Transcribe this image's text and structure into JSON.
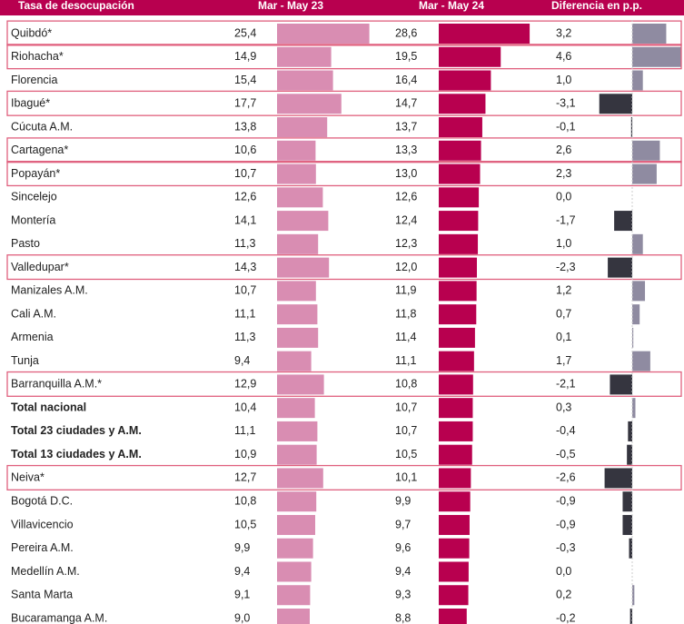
{
  "chart_data": {
    "type": "bar",
    "row_header": "Tasa de desocupación",
    "categories": [
      "Quibdó*",
      "Riohacha*",
      "Florencia",
      "Ibagué*",
      "Cúcuta A.M.",
      "Cartagena*",
      "Popayán*",
      "Sincelejo",
      "Montería",
      "Pasto",
      "Valledupar*",
      "Manizales A.M.",
      "Cali A.M.",
      "Armenia",
      "Tunja",
      "Barranquilla A.M.*",
      "Total nacional",
      "Total 23 ciudades y A.M.",
      "Total 13 ciudades y A.M.",
      "Neiva*",
      "Bogotá D.C.",
      "Villavicencio",
      "Pereira A.M.",
      "Medellín A.M.",
      "Santa Marta",
      "Bucaramanga A.M."
    ],
    "series": [
      {
        "name": "Mar - May 23",
        "color": "#d98db2",
        "values": [
          25.4,
          14.9,
          15.4,
          17.7,
          13.8,
          10.6,
          10.7,
          12.6,
          14.1,
          11.3,
          14.3,
          10.7,
          11.1,
          11.3,
          9.4,
          12.9,
          10.4,
          11.1,
          10.9,
          12.7,
          10.8,
          10.5,
          9.9,
          9.4,
          9.1,
          9.0
        ],
        "value_labels": [
          "25,4",
          "14,9",
          "15,4",
          "17,7",
          "13,8",
          "10,6",
          "10,7",
          "12,6",
          "14,1",
          "11,3",
          "14,3",
          "10,7",
          "11,1",
          "11,3",
          "9,4",
          "12,9",
          "10,4",
          "11,1",
          "10,9",
          "12,7",
          "10,8",
          "10,5",
          "9,9",
          "9,4",
          "9,1",
          "9,0"
        ]
      },
      {
        "name": "Mar - May 24",
        "color": "#b8004f",
        "values": [
          28.6,
          19.5,
          16.4,
          14.7,
          13.7,
          13.3,
          13.0,
          12.6,
          12.4,
          12.3,
          12.0,
          11.9,
          11.8,
          11.4,
          11.1,
          10.8,
          10.7,
          10.7,
          10.5,
          10.1,
          9.9,
          9.7,
          9.6,
          9.4,
          9.3,
          8.8
        ],
        "value_labels": [
          "28,6",
          "19,5",
          "16,4",
          "14,7",
          "13,7",
          "13,3",
          "13,0",
          "12,6",
          "12,4",
          "12,3",
          "12,0",
          "11,9",
          "11,8",
          "11,4",
          "11,1",
          "10,8",
          "10,7",
          "10,7",
          "10,5",
          "10,1",
          "9,9",
          "9,7",
          "9,6",
          "9,4",
          "9,3",
          "8,8"
        ]
      },
      {
        "name": "Diferencia en p.p.",
        "color": "#8f8ba1",
        "negative_color": "#35353f",
        "values": [
          3.2,
          4.6,
          1.0,
          -3.1,
          -0.1,
          2.6,
          2.3,
          0.0,
          -1.7,
          1.0,
          -2.3,
          1.2,
          0.7,
          0.1,
          1.7,
          -2.1,
          0.3,
          -0.4,
          -0.5,
          -2.6,
          -0.9,
          -0.9,
          -0.3,
          0.0,
          0.2,
          -0.2
        ],
        "value_labels": [
          "3,2",
          "4,6",
          "1,0",
          "-3,1",
          "-0,1",
          "2,6",
          "2,3",
          "0,0",
          "-1,7",
          "1,0",
          "-2,3",
          "1,2",
          "0,7",
          "0,1",
          "1,7",
          "-2,1",
          "0,3",
          "-0,4",
          "-0,5",
          "-2,6",
          "-0,9",
          "-0,9",
          "-0,3",
          "0,0",
          "0,2",
          "-0,2"
        ]
      }
    ],
    "header_color": "#b8004f",
    "highlight_color": "#e0607e",
    "highlight_rows": [
      0,
      1,
      3,
      5,
      6,
      10,
      15,
      19
    ],
    "bold_rows": [
      16,
      17,
      18
    ]
  }
}
